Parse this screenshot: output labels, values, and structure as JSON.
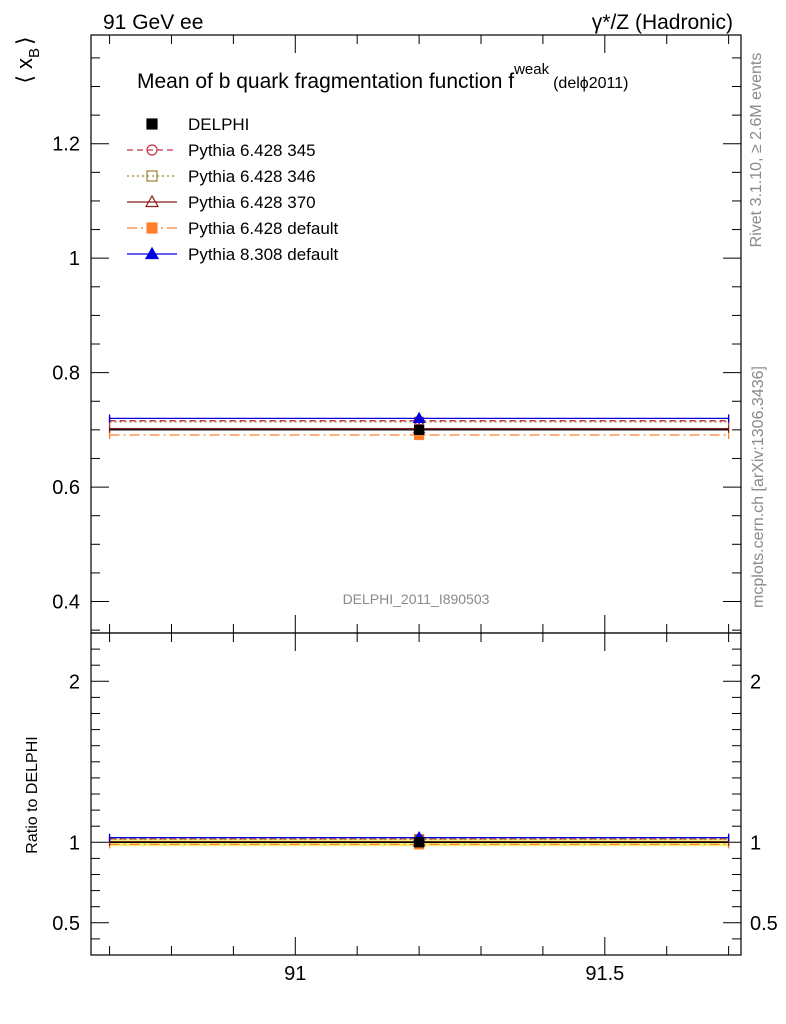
{
  "header": {
    "left": "91 GeV ee",
    "right": "γ*/Z (Hadronic)"
  },
  "side_labels": {
    "rivet": "Rivet 3.1.10, ≥ 2.6M events",
    "mcplots": "mcplots.cern.ch [arXiv:1306.3436]"
  },
  "watermark": "DELPHI_2011_I890503",
  "chart_data": [
    {
      "type": "scatter",
      "title": "Mean of b quark fragmentation function f",
      "title_sup": "weak",
      "title_suffix": "(delϕ2011)",
      "ylabel": "⟨ x",
      "ylabel_sub": "B",
      "ylabel_close": "⟩",
      "xlim": [
        90.67,
        91.72
      ],
      "ylim": [
        0.345,
        1.39
      ],
      "yticks": [
        0.4,
        0.6,
        0.8,
        1,
        1.2
      ],
      "ytick_labels": [
        "0.4",
        "0.6",
        "0.8",
        "1",
        "1.2"
      ],
      "x_center": 91.2,
      "x_span": [
        90.7,
        91.7
      ],
      "legend_position": "top-left",
      "series": [
        {
          "name": "DELPHI",
          "y": 0.7,
          "color": "#000000",
          "marker": "square",
          "dash": ""
        },
        {
          "name": "Pythia 6.428 345",
          "y": 0.716,
          "color": "#c0304a",
          "marker": "circle-open",
          "dash": "6,4"
        },
        {
          "name": "Pythia 6.428 346",
          "y": 0.714,
          "color": "#a08030",
          "marker": "square-open",
          "dash": "2,3"
        },
        {
          "name": "Pythia 6.428 370",
          "y": 0.702,
          "color": "#8b1a1a",
          "marker": "triangle-open",
          "dash": ""
        },
        {
          "name": "Pythia 6.428 default",
          "y": 0.691,
          "color": "#ff7f2a",
          "marker": "square",
          "dash": "10,4,2,4"
        },
        {
          "name": "Pythia 8.308 default",
          "y": 0.72,
          "color": "#0000e0",
          "marker": "triangle",
          "dash": ""
        }
      ]
    },
    {
      "type": "scatter",
      "ylabel": "Ratio to DELPHI",
      "xlim": [
        90.67,
        91.72
      ],
      "ylim": [
        0.3,
        2.3
      ],
      "yticks": [
        0.5,
        1,
        2
      ],
      "ytick_labels": [
        "0.5",
        "1",
        "2"
      ],
      "xticks": [
        91,
        91.5
      ],
      "xtick_labels": [
        "91",
        "91.5"
      ],
      "band": {
        "low": 0.975,
        "high": 1.025,
        "color": "#f2f27a"
      },
      "series": [
        {
          "name": "DELPHI",
          "y": 1.0
        },
        {
          "name": "Pythia 6.428 345",
          "y": 1.022
        },
        {
          "name": "Pythia 6.428 346",
          "y": 1.019
        },
        {
          "name": "Pythia 6.428 370",
          "y": 1.003
        },
        {
          "name": "Pythia 6.428 default",
          "y": 0.987
        },
        {
          "name": "Pythia 8.308 default",
          "y": 1.029
        }
      ]
    }
  ]
}
